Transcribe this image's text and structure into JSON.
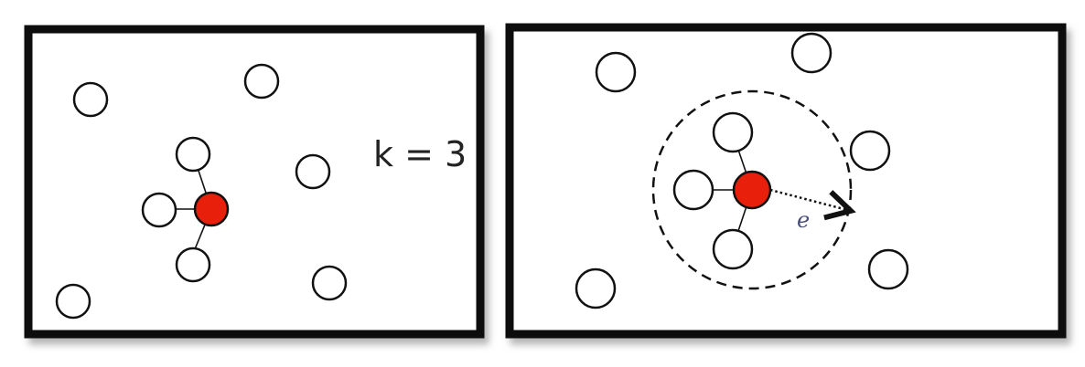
{
  "left_panel": {
    "label": "k = 3"
  },
  "right_panel": {
    "radius_label": "e"
  },
  "colors": {
    "query_point": "#e8200b",
    "point_fill": "#ffffff",
    "stroke": "#111111",
    "frame_shadow": "#777777"
  }
}
